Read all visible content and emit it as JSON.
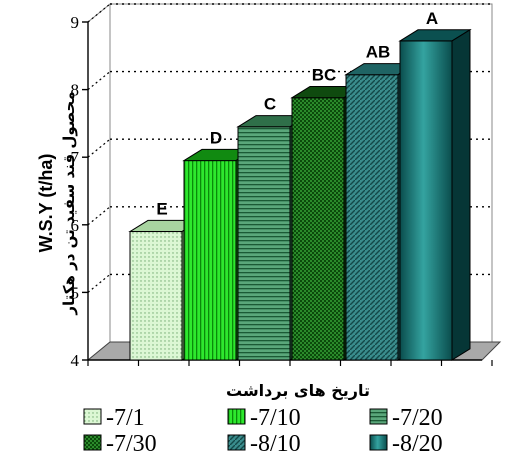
{
  "chart_data": {
    "type": "bar",
    "style": "3d",
    "categories": [
      "-7/1",
      "-7/10",
      "-7/20",
      "-7/30",
      "-8/10",
      "-8/20"
    ],
    "values": [
      5.9,
      6.95,
      7.45,
      7.88,
      8.22,
      8.72
    ],
    "data_labels": [
      "E",
      "D",
      "C",
      "BC",
      "AB",
      "A"
    ],
    "ylabel": "W.S.Y (t/ha)",
    "ylabel_secondary": "محصول قند سفید تن در هکتار",
    "xlabel": "تاریخ های برداشت",
    "ylim": [
      4,
      9
    ],
    "yticks": [
      4,
      5,
      6,
      7,
      8,
      9
    ],
    "grid": "dotted horizontal",
    "legend_position": "bottom",
    "legend_entries": [
      "-7/1",
      "-7/10",
      "-7/20",
      "-7/30",
      "-8/10",
      "-8/20"
    ],
    "colors": [
      "#d8f5d0",
      "#22dd22",
      "#3d8f5e",
      "#1d6e1d",
      "#2f7f7f",
      "#0e5f5f"
    ]
  }
}
